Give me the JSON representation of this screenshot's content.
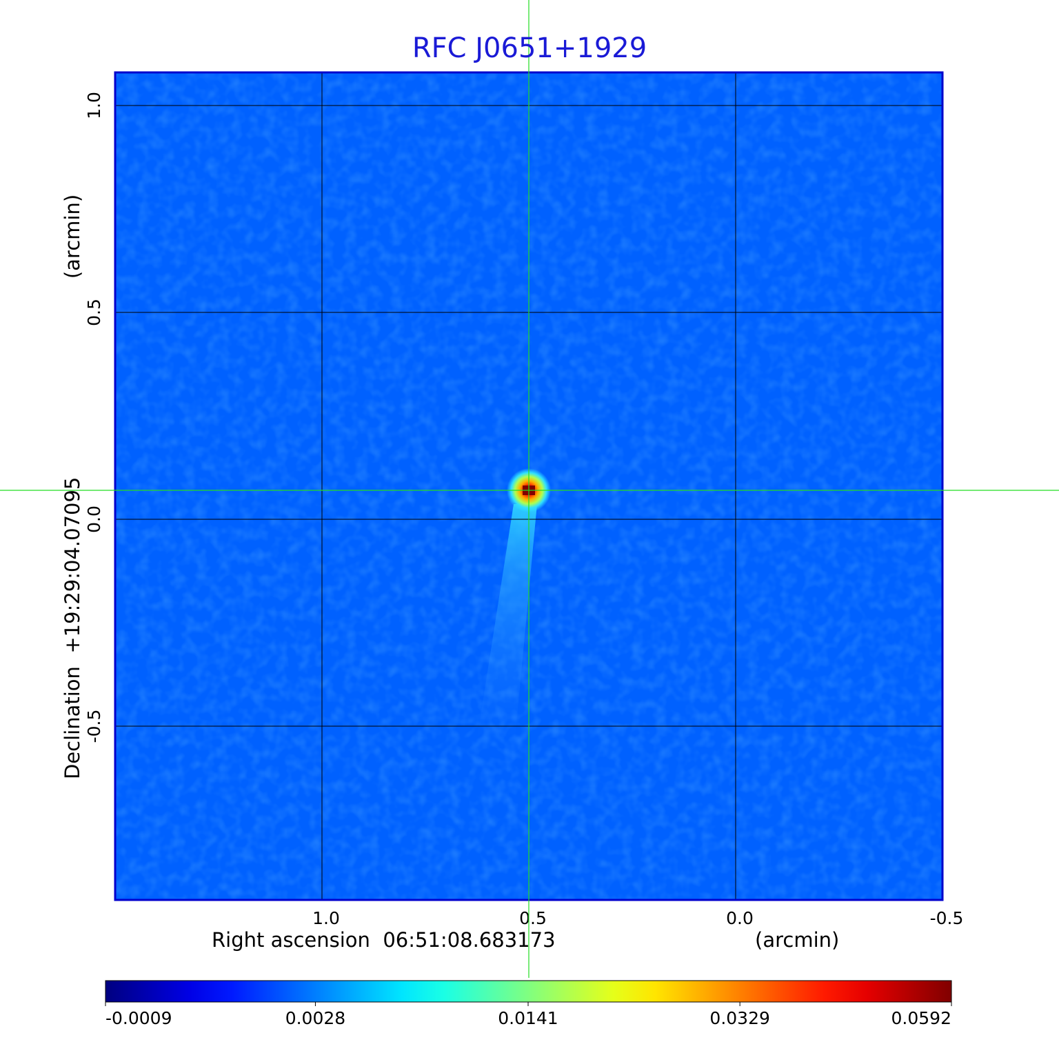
{
  "chart_data": {
    "type": "image",
    "title": "RFC J0651+1929",
    "x_label": "Right ascension  06:51:08.683173",
    "x_unit": "(arcmin)",
    "y_label": "Declination  +19:29:04.07095",
    "y_unit": "(arcmin)",
    "xlim": [
      1.5,
      -0.5
    ],
    "ylim": [
      -0.92,
      1.08
    ],
    "xticks": [
      {
        "value": 1,
        "label": "1.0"
      },
      0.5,
      {
        "value": 0,
        "label": "0.0"
      },
      -0.5
    ],
    "yticks": [
      {
        "value": 1,
        "label": "1.0"
      },
      0.5,
      {
        "value": 0,
        "label": "0.0"
      },
      -0.5
    ],
    "grid": true,
    "source": {
      "x": 0.5,
      "y": 0.07,
      "peak": 0.0592
    },
    "colormap": "jet",
    "colorbar_scale": "sqrt",
    "clim": [
      -0.0009,
      0.0592
    ],
    "colorbar_ticks": [
      -0.0009,
      0.0028,
      0.0141,
      0.0329,
      0.0592
    ]
  }
}
